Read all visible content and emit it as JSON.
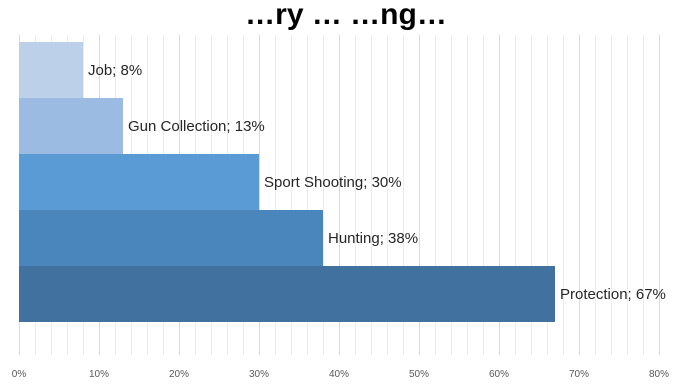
{
  "chart_data": {
    "type": "bar",
    "orientation": "horizontal",
    "title": "…ry … …ng…",
    "categories": [
      "Job",
      "Gun Collection",
      "Sport Shooting",
      "Hunting",
      "Protection"
    ],
    "values": [
      8,
      13,
      30,
      38,
      67
    ],
    "unit": "%",
    "data_labels": [
      "Job; 8%",
      "Gun Collection; 13%",
      "Sport Shooting; 30%",
      "Hunting; 38%",
      "Protection; 67%"
    ],
    "bar_colors": [
      "#bdd0ea",
      "#9bbbe2",
      "#5b9bd5",
      "#4a86bc",
      "#41729f"
    ],
    "xlim": [
      0,
      80
    ],
    "x_ticks": [
      "0%",
      "10%",
      "20%",
      "30%",
      "40%",
      "50%",
      "60%",
      "70%",
      "80%"
    ],
    "minor_grid_step": 2,
    "grid": true,
    "legend": "none",
    "xlabel": "",
    "ylabel": ""
  }
}
